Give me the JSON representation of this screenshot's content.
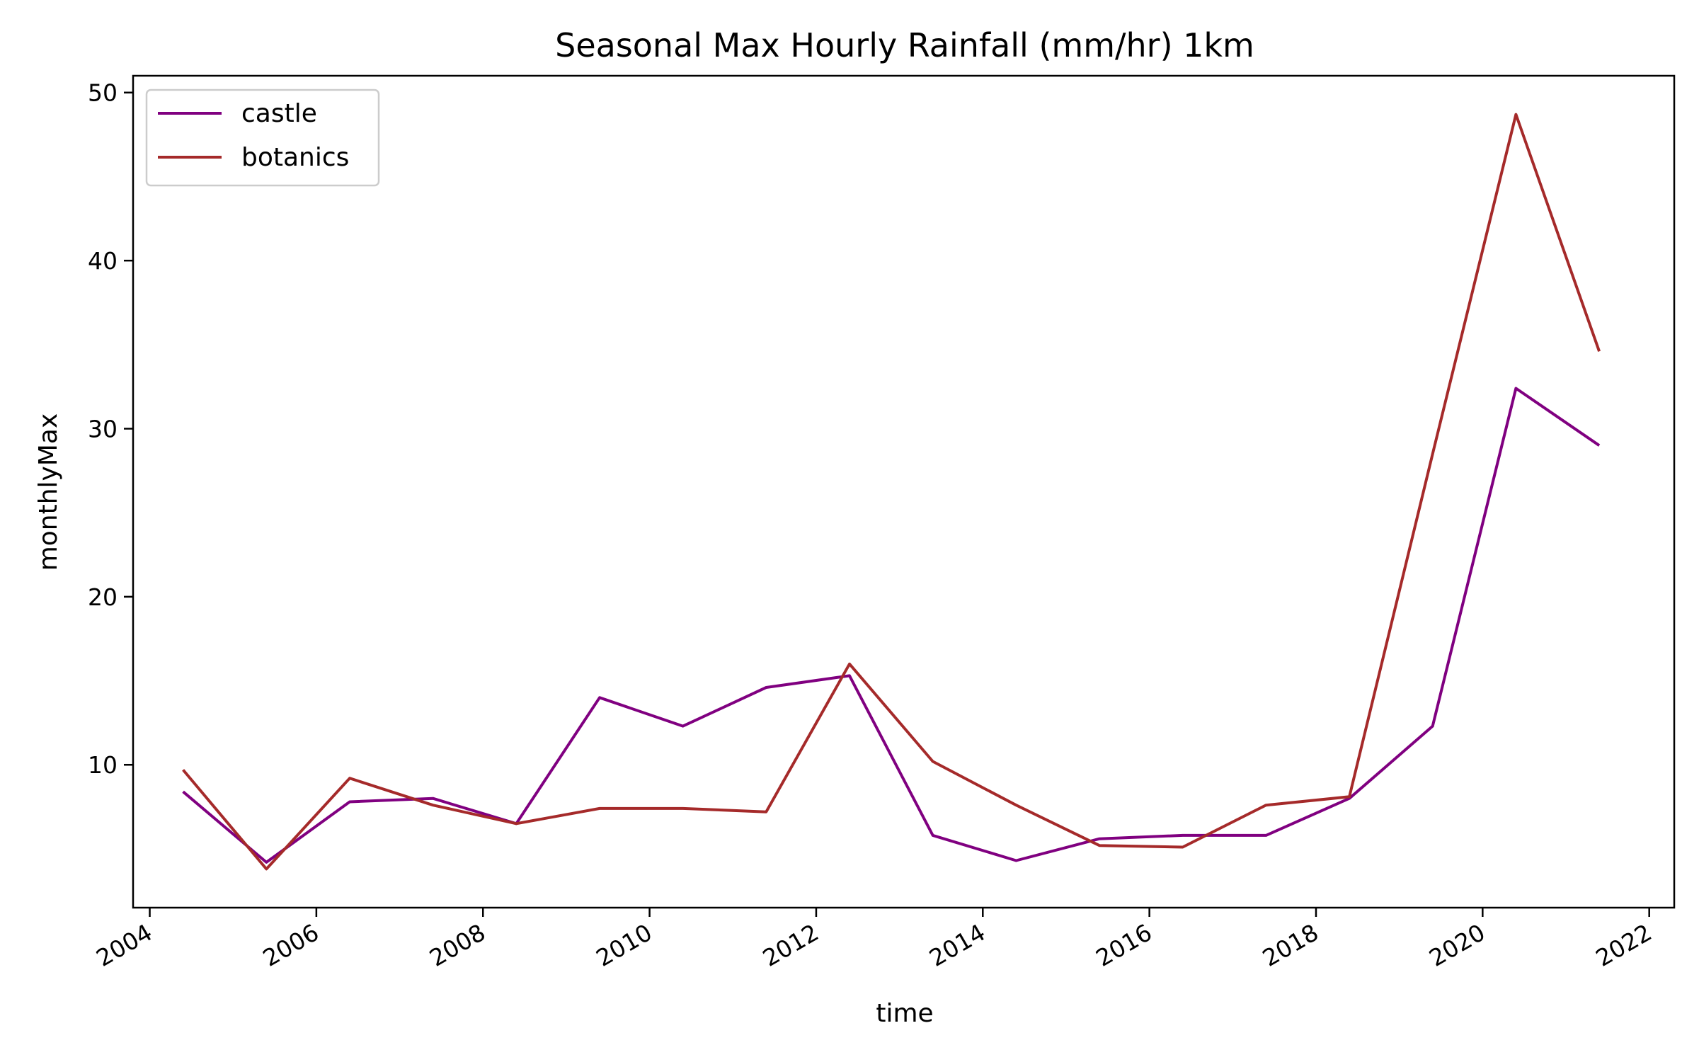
{
  "chart_data": {
    "type": "line",
    "title": "Seasonal Max Hourly Rainfall (mm/hr) 1km",
    "xlabel": "time",
    "ylabel": "monthlyMax",
    "x": [
      2004.4,
      2005.4,
      2006.4,
      2007.4,
      2008.4,
      2009.4,
      2010.4,
      2011.4,
      2012.4,
      2013.4,
      2014.4,
      2015.4,
      2016.4,
      2017.4,
      2018.4,
      2019.4,
      2020.4,
      2021.4
    ],
    "series": [
      {
        "name": "castle",
        "color": "#800080",
        "values": [
          8.4,
          4.2,
          7.8,
          8.0,
          6.5,
          14.0,
          12.3,
          14.6,
          15.3,
          5.8,
          4.3,
          5.6,
          5.8,
          5.8,
          8.0,
          12.3,
          32.4,
          29.0
        ]
      },
      {
        "name": "botanics",
        "color": "#a52a2a",
        "values": [
          9.7,
          3.8,
          9.2,
          7.6,
          6.5,
          7.4,
          7.4,
          7.2,
          16.0,
          10.2,
          7.6,
          5.2,
          5.1,
          7.6,
          8.1,
          28.5,
          48.7,
          34.6
        ]
      }
    ],
    "xlim": [
      2003.8,
      2022.3
    ],
    "ylim": [
      1.5,
      51.0
    ],
    "x_ticks": [
      2004,
      2006,
      2008,
      2010,
      2012,
      2014,
      2016,
      2018,
      2020,
      2022
    ],
    "x_tick_labels": [
      "2004",
      "2006",
      "2008",
      "2010",
      "2012",
      "2014",
      "2016",
      "2018",
      "2020",
      "2022"
    ],
    "y_ticks": [
      10,
      20,
      30,
      40,
      50
    ],
    "y_tick_labels": [
      "10",
      "20",
      "30",
      "40",
      "50"
    ],
    "grid": false,
    "legend_position": "top-left"
  }
}
